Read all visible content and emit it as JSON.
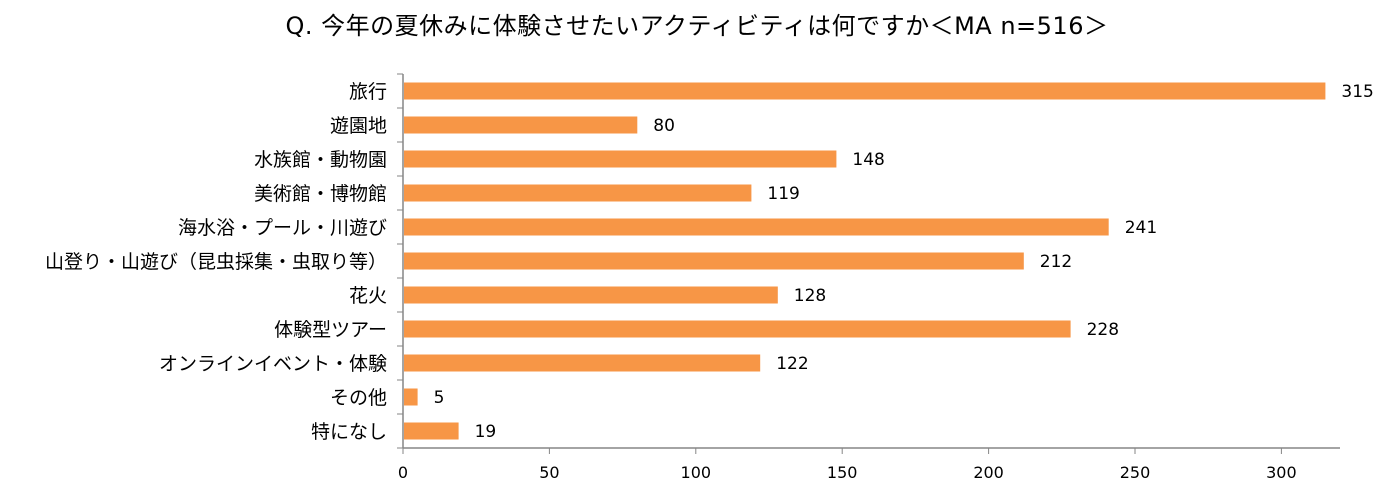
{
  "chart_data": {
    "type": "bar",
    "orientation": "horizontal",
    "title": "Q. 今年の夏休みに体験させたいアクティビティは何ですか＜MA n=516＞",
    "categories": [
      "旅行",
      "遊園地",
      "水族館・動物園",
      "美術館・博物館",
      "海水浴・プール・川遊び",
      "山登り・山遊び（昆虫採集・虫取り等）",
      "花火",
      "体験型ツアー",
      "オンラインイベント・体験",
      "その他",
      "特になし"
    ],
    "values": [
      315,
      80,
      148,
      119,
      241,
      212,
      128,
      228,
      122,
      5,
      19
    ],
    "xlim": [
      0,
      320
    ],
    "xticks": [
      0,
      50,
      100,
      150,
      200,
      250,
      300
    ],
    "grid": false,
    "legend": "none",
    "bar_color": "#F79646",
    "axis_color": "#868686"
  }
}
